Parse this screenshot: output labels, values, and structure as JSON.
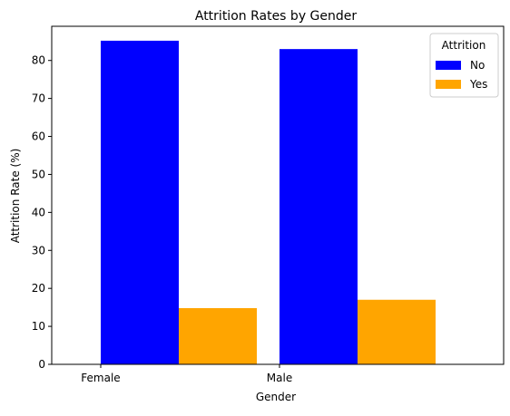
{
  "chart_data": {
    "type": "bar",
    "title": "Attrition Rates by Gender",
    "xlabel": "Gender",
    "ylabel": "Attrition Rate (%)",
    "categories": [
      "Female",
      "Male"
    ],
    "series": [
      {
        "name": "No",
        "values": [
          85.2,
          83.0
        ],
        "color": "#0000ff"
      },
      {
        "name": "Yes",
        "values": [
          14.8,
          17.0
        ],
        "color": "#ffa500"
      }
    ],
    "ylim": [
      0,
      89
    ],
    "yticks": [
      0,
      10,
      20,
      30,
      40,
      50,
      60,
      70,
      80
    ],
    "grid": false,
    "legend": {
      "title": "Attrition",
      "placement": "top-right"
    }
  }
}
